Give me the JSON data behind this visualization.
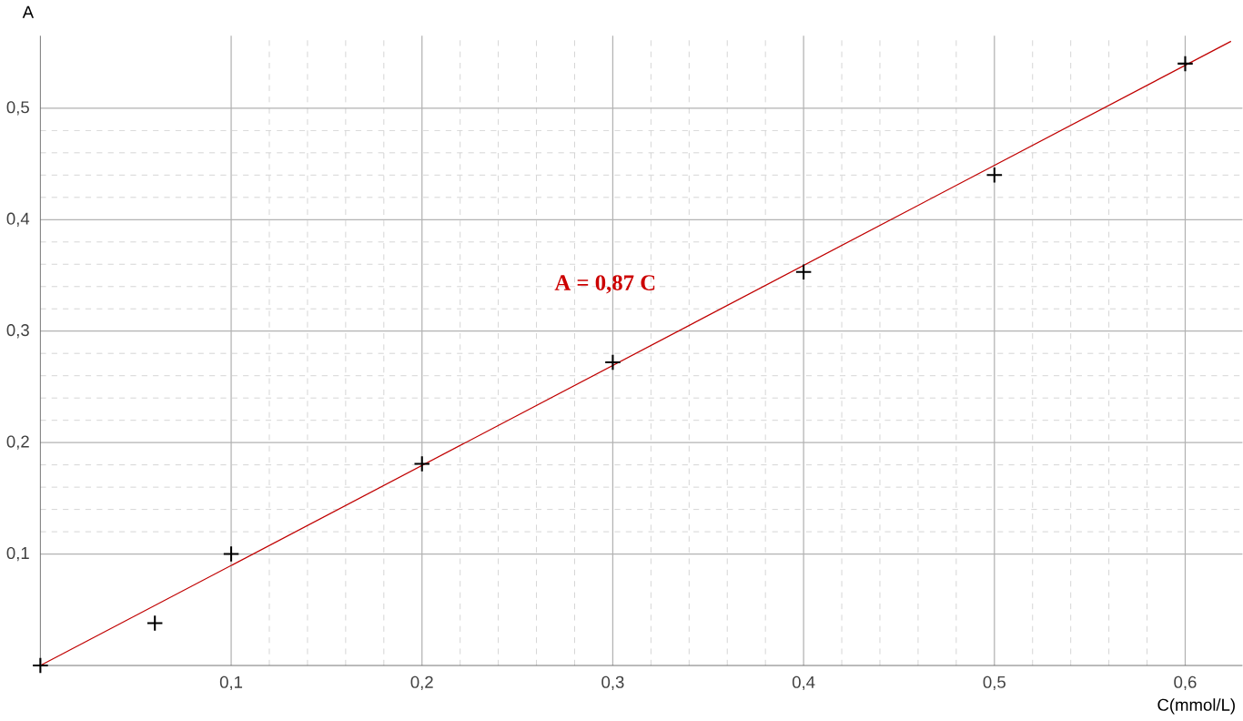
{
  "chart_data": {
    "type": "scatter",
    "xlabel": "C(mmol/L)",
    "ylabel": "A",
    "xlim": [
      0,
      0.63
    ],
    "ylim": [
      0,
      0.565
    ],
    "xticks": [
      {
        "value": 0.1,
        "label": "0,1"
      },
      {
        "value": 0.2,
        "label": "0,2"
      },
      {
        "value": 0.3,
        "label": "0,3"
      },
      {
        "value": 0.4,
        "label": "0,4"
      },
      {
        "value": 0.5,
        "label": "0,5"
      },
      {
        "value": 0.6,
        "label": "0,6"
      }
    ],
    "yticks": [
      {
        "value": 0.1,
        "label": "0,1"
      },
      {
        "value": 0.2,
        "label": "0,2"
      },
      {
        "value": 0.3,
        "label": "0,3"
      },
      {
        "value": 0.4,
        "label": "0,4"
      },
      {
        "value": 0.5,
        "label": "0,5"
      }
    ],
    "grid": true,
    "series": [
      {
        "marker": "cross",
        "color": "#000000",
        "x": [
          0,
          0.06,
          0.1,
          0.2,
          0.3,
          0.4,
          0.5,
          0.6
        ],
        "values": [
          0,
          0.038,
          0.1,
          0.181,
          0.272,
          0.353,
          0.44,
          0.54
        ]
      },
      {
        "type": "line",
        "marker": "none",
        "color": "#c00000",
        "x": [
          0,
          0.624
        ],
        "values": [
          0,
          0.56
        ]
      }
    ],
    "annotations": [
      "**A = 0,87 C**"
    ]
  }
}
